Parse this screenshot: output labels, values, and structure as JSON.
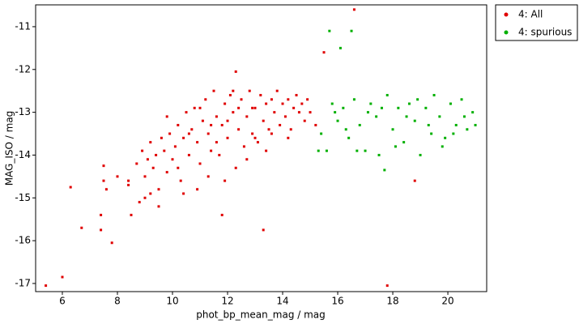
{
  "chart_data": {
    "type": "scatter",
    "x_label": "phot_bp_mean_mag / mag",
    "y_label": "MAG_ISO / mag",
    "xlim": [
      5.03,
      21.41
    ],
    "ylim": [
      -17.19,
      -10.49
    ],
    "xticks": [
      6,
      8,
      10,
      12,
      14,
      16,
      18,
      20
    ],
    "yticks": [
      -11,
      -12,
      -13,
      -14,
      -15,
      -16,
      -17
    ],
    "legend": "outside-top-right",
    "series": [
      {
        "name": "4: All",
        "color": "#e00000",
        "x": [
          5.4,
          6.0,
          6.3,
          6.7,
          7.4,
          7.4,
          7.5,
          7.5,
          7.6,
          7.8,
          8.0,
          8.4,
          8.5,
          16.6,
          15.5,
          12.3,
          11.8,
          13.3,
          17.8,
          18.8,
          8.7,
          8.9,
          9.0,
          9.1,
          9.2,
          9.3,
          9.4,
          9.5,
          9.6,
          9.7,
          9.8,
          9.9,
          10.0,
          10.1,
          10.2,
          10.3,
          10.4,
          10.5,
          10.6,
          10.7,
          10.8,
          10.9,
          11.0,
          11.1,
          11.2,
          11.3,
          11.4,
          11.5,
          11.6,
          11.7,
          11.8,
          11.9,
          12.0,
          12.1,
          12.2,
          12.3,
          12.4,
          12.5,
          12.6,
          12.7,
          12.8,
          12.9,
          13.0,
          13.1,
          13.2,
          13.3,
          13.4,
          13.5,
          13.6,
          13.7,
          13.8,
          13.9,
          14.0,
          14.1,
          14.2,
          14.3,
          14.4,
          14.5,
          14.6,
          14.7,
          14.8,
          14.9,
          15.0,
          15.2,
          10.2,
          10.6,
          11.0,
          11.3,
          11.6,
          12.0,
          12.4,
          12.7,
          13.0,
          13.4,
          11.9,
          10.9,
          12.2,
          12.9,
          11.4,
          13.6,
          14.2,
          9.2,
          8.4,
          8.8,
          9.0,
          9.5,
          10.4,
          9.8
        ],
        "y": [
          -17.05,
          -16.85,
          -14.75,
          -15.7,
          -15.4,
          -15.75,
          -14.6,
          -14.25,
          -14.8,
          -16.05,
          -14.5,
          -14.7,
          -15.4,
          -10.6,
          -11.6,
          -12.05,
          -15.4,
          -15.75,
          -17.05,
          -14.6,
          -14.2,
          -13.9,
          -14.5,
          -14.1,
          -13.7,
          -14.3,
          -14.0,
          -14.8,
          -13.6,
          -13.9,
          -14.4,
          -13.5,
          -14.1,
          -13.8,
          -13.3,
          -14.6,
          -13.6,
          -13.0,
          -14.0,
          -13.4,
          -12.9,
          -13.7,
          -14.2,
          -13.2,
          -12.7,
          -13.5,
          -13.9,
          -12.5,
          -13.1,
          -14.0,
          -13.3,
          -12.8,
          -13.6,
          -12.6,
          -13.0,
          -14.3,
          -13.4,
          -12.7,
          -13.8,
          -13.1,
          -12.5,
          -13.5,
          -12.9,
          -13.7,
          -12.6,
          -13.2,
          -12.8,
          -13.4,
          -12.7,
          -13.0,
          -12.5,
          -13.3,
          -12.8,
          -13.1,
          -12.7,
          -13.4,
          -12.9,
          -12.6,
          -13.0,
          -12.8,
          -13.2,
          -12.7,
          -13.0,
          -13.3,
          -14.3,
          -13.5,
          -12.9,
          -14.5,
          -13.7,
          -13.2,
          -12.9,
          -14.1,
          -13.6,
          -13.9,
          -14.6,
          -14.8,
          -12.5,
          -12.9,
          -13.3,
          -13.5,
          -13.6,
          -14.9,
          -14.6,
          -15.1,
          -15.0,
          -15.2,
          -14.9,
          -13.1
        ]
      },
      {
        "name": "4: spurious",
        "color": "#00b000",
        "x": [
          15.7,
          16.1,
          16.5,
          15.4,
          15.6,
          15.8,
          16.0,
          16.2,
          16.4,
          16.6,
          16.8,
          17.0,
          17.2,
          17.4,
          17.5,
          17.7,
          17.8,
          18.0,
          18.2,
          18.4,
          18.6,
          18.8,
          19.0,
          19.2,
          19.4,
          19.5,
          19.7,
          19.9,
          20.1,
          20.3,
          20.5,
          20.7,
          20.9,
          21.0,
          15.3,
          15.9,
          16.3,
          16.7,
          17.1,
          17.6,
          18.1,
          18.5,
          18.9,
          19.3,
          19.8,
          20.2,
          20.6
        ],
        "y": [
          -11.1,
          -11.5,
          -11.1,
          -13.5,
          -13.9,
          -12.8,
          -13.2,
          -12.9,
          -13.6,
          -12.7,
          -13.3,
          -13.9,
          -12.8,
          -13.1,
          -14.0,
          -14.35,
          -12.6,
          -13.4,
          -12.9,
          -13.7,
          -12.8,
          -13.2,
          -14.0,
          -12.9,
          -13.5,
          -12.6,
          -13.1,
          -13.6,
          -12.8,
          -13.3,
          -12.7,
          -13.4,
          -13.0,
          -13.3,
          -13.9,
          -13.0,
          -13.4,
          -13.9,
          -13.0,
          -12.9,
          -13.8,
          -13.1,
          -12.7,
          -13.3,
          -13.8,
          -13.5,
          -13.1
        ]
      }
    ]
  }
}
